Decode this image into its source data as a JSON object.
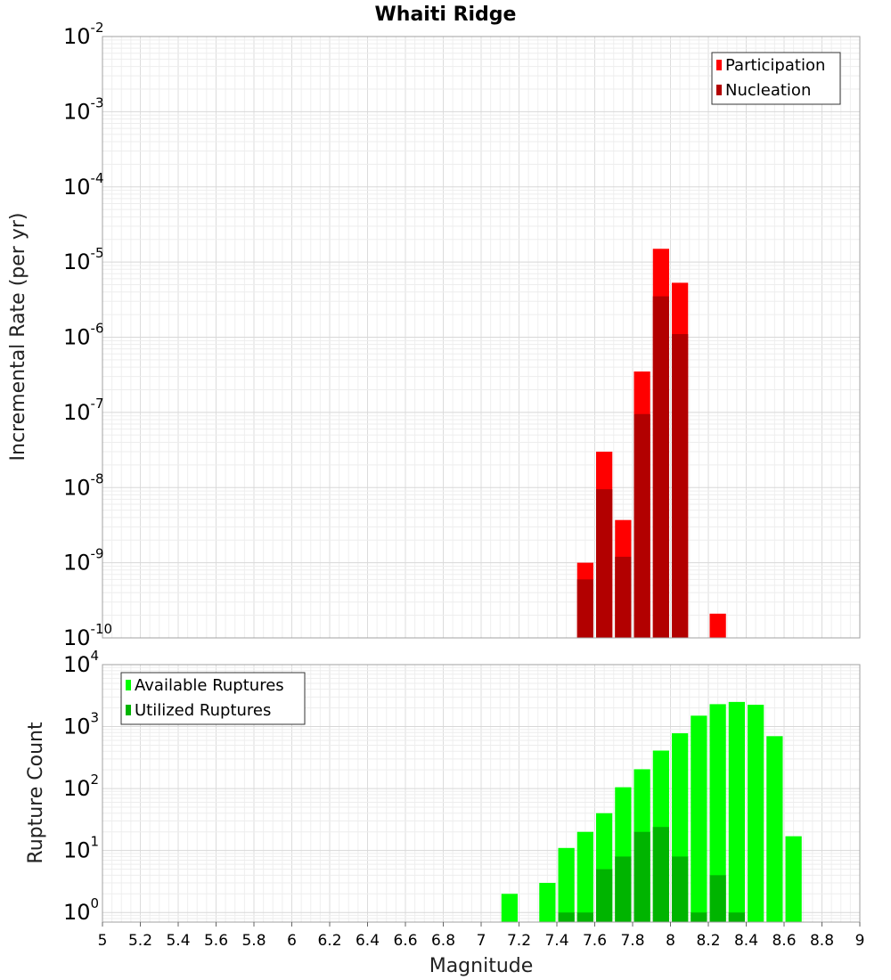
{
  "title": "Whaiti Ridge",
  "colors": {
    "participation": "#ff0000",
    "nucleation": "#b20000",
    "available": "#00ff00",
    "utilized": "#00b400"
  },
  "chart_data": [
    {
      "type": "bar",
      "scale_y": "log",
      "xlabel": "Magnitude",
      "ylabel": "Incremental Rate (per yr)",
      "xlim": [
        5,
        9
      ],
      "ylim": [
        1e-10,
        0.01
      ],
      "grid": true,
      "legend_position": "top-right",
      "bin_width": 0.1,
      "x": [
        7.55,
        7.65,
        7.75,
        7.85,
        7.95,
        8.05,
        8.25
      ],
      "series": [
        {
          "name": "Participation",
          "values": [
            1e-09,
            3e-08,
            3.7e-09,
            3.5e-07,
            1.5e-05,
            5.3e-06,
            2.1e-10
          ]
        },
        {
          "name": "Nucleation",
          "values": [
            6e-10,
            9.5e-09,
            1.2e-09,
            9.5e-08,
            3.5e-06,
            1.1e-06,
            null
          ]
        }
      ]
    },
    {
      "type": "bar",
      "scale_y": "log",
      "xlabel": "Magnitude",
      "ylabel": "Rupture Count",
      "xlim": [
        5,
        9
      ],
      "ylim": [
        0.7,
        10000
      ],
      "grid": true,
      "legend_position": "top-left",
      "bin_width": 0.1,
      "x_ticks": [
        "5",
        "5.2",
        "5.4",
        "5.6",
        "5.8",
        "6",
        "6.2",
        "6.4",
        "6.6",
        "6.8",
        "7",
        "7.2",
        "7.4",
        "7.6",
        "7.8",
        "8",
        "8.2",
        "8.4",
        "8.6",
        "8.8",
        "9"
      ],
      "x": [
        7.15,
        7.35,
        7.45,
        7.55,
        7.65,
        7.75,
        7.85,
        7.95,
        8.05,
        8.15,
        8.25,
        8.35,
        8.45,
        8.55,
        8.65
      ],
      "series": [
        {
          "name": "Available Ruptures",
          "values": [
            2,
            3,
            11,
            20,
            40,
            105,
            205,
            410,
            780,
            1500,
            2300,
            2500,
            2250,
            700,
            17
          ]
        },
        {
          "name": "Utilized Ruptures",
          "values": [
            null,
            null,
            1,
            1,
            5,
            8,
            20,
            24,
            8,
            1,
            4,
            1,
            null,
            null,
            null
          ]
        }
      ]
    }
  ]
}
